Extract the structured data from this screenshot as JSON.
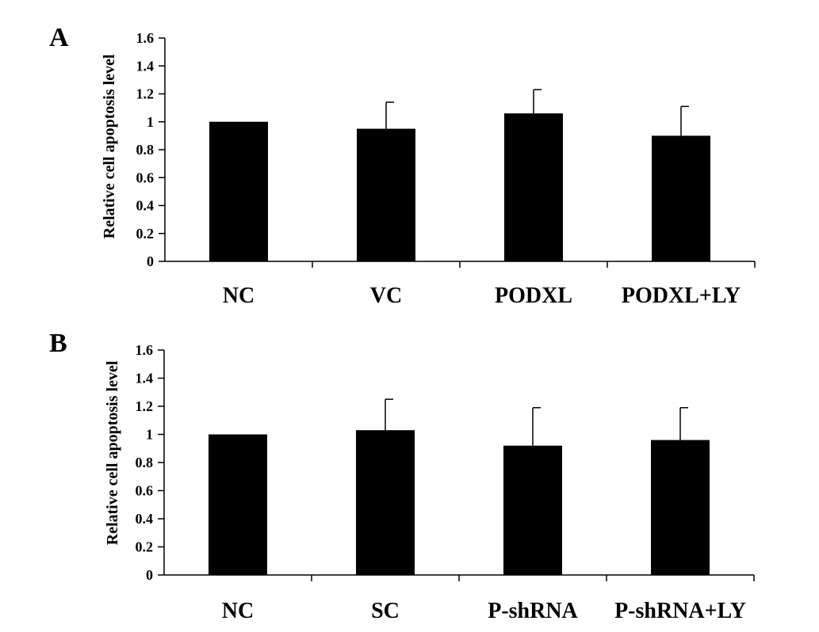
{
  "chart_data": [
    {
      "type": "bar",
      "panel": "A",
      "ylabel": "Relative cell apoptosis level",
      "ylim": [
        0,
        1.6
      ],
      "yticks": [
        "0",
        "0.2",
        "0.4",
        "0.6",
        "0.8",
        "1",
        "1.2",
        "1.4",
        "1.6"
      ],
      "categories": [
        "NC",
        "VC",
        "PODXL",
        "PODXL+LY"
      ],
      "values": [
        1.0,
        0.95,
        1.06,
        0.9
      ],
      "errors": [
        0,
        0.19,
        0.17,
        0.21
      ],
      "grid": false
    },
    {
      "type": "bar",
      "panel": "B",
      "ylabel": "Relative cell apoptosis level",
      "ylim": [
        0,
        1.6
      ],
      "yticks": [
        "0",
        "0.2",
        "0.4",
        "0.6",
        "0.8",
        "1",
        "1.2",
        "1.4",
        "1.6"
      ],
      "categories": [
        "NC",
        "SC",
        "P-shRNA",
        "P-shRNA+LY"
      ],
      "values": [
        1.0,
        1.03,
        0.92,
        0.96
      ],
      "errors": [
        0,
        0.22,
        0.27,
        0.23
      ],
      "grid": false
    }
  ]
}
